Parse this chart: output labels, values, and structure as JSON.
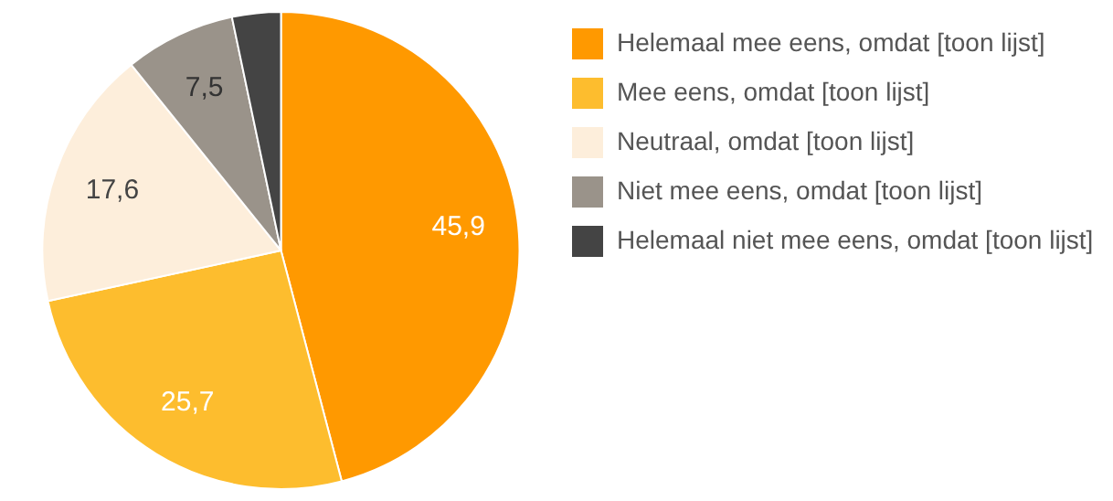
{
  "chart_data": {
    "type": "pie",
    "categories": [
      "Helemaal mee eens, omdat [toon lijst]",
      "Mee eens, omdat [toon lijst]",
      "Neutraal, omdat [toon lijst]",
      "Niet mee eens, omdat [toon lijst]",
      "Helemaal niet mee eens, omdat [toon lijst]"
    ],
    "values": [
      45.9,
      25.7,
      17.6,
      7.5,
      3.3
    ],
    "value_labels": [
      "45,9",
      "25,7",
      "17,6",
      "7,5",
      null
    ],
    "colors": [
      "#ff9900",
      "#fdbd2e",
      "#fdeedb",
      "#9a938a",
      "#444444"
    ],
    "legend": "top right"
  }
}
